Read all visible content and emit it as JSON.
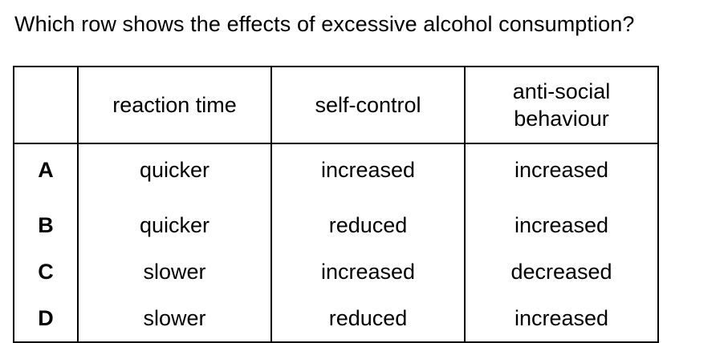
{
  "question": "Which row shows the effects of excessive alcohol consumption?",
  "table": {
    "headers": [
      "",
      "reaction time",
      "self-control",
      "anti-social behaviour"
    ],
    "rows": [
      {
        "letter": "A",
        "reaction_time": "quicker",
        "self_control": "increased",
        "anti_social": "increased"
      },
      {
        "letter": "B",
        "reaction_time": "quicker",
        "self_control": "reduced",
        "anti_social": "increased"
      },
      {
        "letter": "C",
        "reaction_time": "slower",
        "self_control": "increased",
        "anti_social": "decreased"
      },
      {
        "letter": "D",
        "reaction_time": "slower",
        "self_control": "reduced",
        "anti_social": "increased"
      }
    ]
  }
}
